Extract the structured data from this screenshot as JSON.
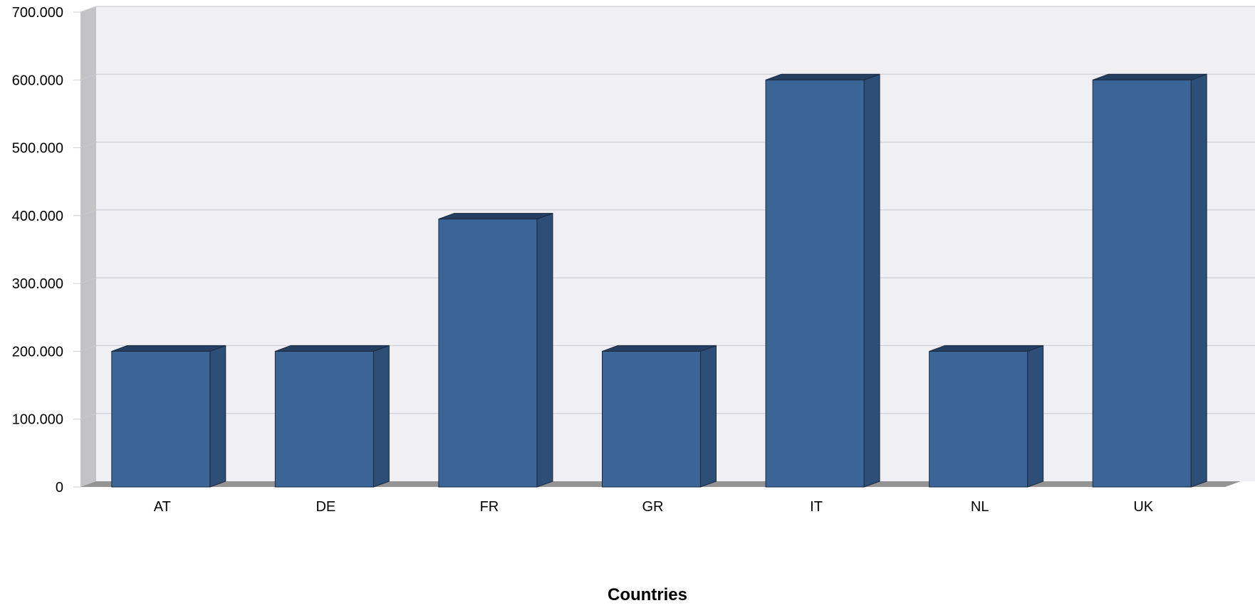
{
  "chart_data": {
    "type": "bar",
    "style": "3d",
    "categories": [
      "AT",
      "DE",
      "FR",
      "GR",
      "IT",
      "NL",
      "UK"
    ],
    "values": [
      200000,
      200000,
      395000,
      200000,
      600000,
      200000,
      600000
    ],
    "xlabel": "Countries",
    "ylabel": "",
    "ylim": [
      0,
      700000
    ],
    "y_ticks": [
      "0",
      "100.000",
      "200.000",
      "300.000",
      "400.000",
      "500.000",
      "600.000",
      "700.000"
    ],
    "grid": true,
    "legend": "none",
    "colors": {
      "bar_front": "#3a6596",
      "bar_side": "#2d4e77",
      "bar_top": "#253f61",
      "bar_edge": "#1a2a40",
      "plot_back": "#efeff4",
      "wall": "#c3c3c6",
      "floor": "#949494",
      "grid": "#c8c8cf"
    }
  }
}
